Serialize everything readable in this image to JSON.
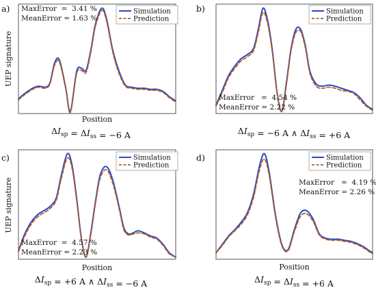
{
  "chart_data": [
    {
      "type": "line",
      "panel_label": "a)",
      "xlabel": "Position",
      "ylabel": "UEP signature",
      "caption": "ΔIsp = ΔIss = −6 A",
      "legend": {
        "placement": "top-right",
        "entries": [
          "Simulation",
          "Prediction"
        ]
      },
      "annotation": {
        "placement": "top-left",
        "lines": [
          "MaxError  =  3.41 %",
          "MeanError = 1.63 %"
        ]
      },
      "grid": false,
      "xlim": [
        0,
        1
      ],
      "ylim": [
        0,
        1
      ],
      "x": [
        0,
        0.04,
        0.09,
        0.13,
        0.17,
        0.2,
        0.23,
        0.26,
        0.3,
        0.33,
        0.37,
        0.4,
        0.43,
        0.46,
        0.49,
        0.53,
        0.56,
        0.6,
        0.64,
        0.68,
        0.72,
        0.76,
        0.8,
        0.84,
        0.88,
        0.92,
        0.96,
        1
      ],
      "series": [
        {
          "name": "Simulation",
          "values": [
            0.14,
            0.19,
            0.24,
            0.26,
            0.25,
            0.29,
            0.48,
            0.51,
            0.25,
            0.02,
            0.4,
            0.43,
            0.41,
            0.6,
            0.85,
            1.0,
            0.9,
            0.6,
            0.4,
            0.27,
            0.25,
            0.24,
            0.24,
            0.23,
            0.23,
            0.21,
            0.16,
            0.12
          ]
        },
        {
          "name": "Prediction",
          "values": [
            0.13,
            0.18,
            0.23,
            0.25,
            0.24,
            0.28,
            0.46,
            0.49,
            0.24,
            0.01,
            0.38,
            0.41,
            0.39,
            0.58,
            0.83,
            0.98,
            0.88,
            0.58,
            0.38,
            0.26,
            0.24,
            0.23,
            0.23,
            0.22,
            0.22,
            0.2,
            0.15,
            0.11
          ]
        }
      ]
    },
    {
      "type": "line",
      "panel_label": "b)",
      "xlabel": "",
      "ylabel": "",
      "caption": "ΔIsp = −6 A ∧ ΔIss = +6 A",
      "legend": {
        "placement": "top-right",
        "entries": [
          "Simulation",
          "Prediction"
        ]
      },
      "annotation": {
        "placement": "bottom-left",
        "lines": [
          "MaxError   =  4.54 %",
          "MeanError = 2.22 %"
        ]
      },
      "grid": false,
      "xlim": [
        0,
        1
      ],
      "ylim": [
        0,
        1
      ],
      "x": [
        0,
        0.04,
        0.08,
        0.12,
        0.16,
        0.2,
        0.24,
        0.27,
        0.3,
        0.33,
        0.36,
        0.39,
        0.42,
        0.45,
        0.48,
        0.51,
        0.54,
        0.57,
        0.6,
        0.64,
        0.68,
        0.72,
        0.76,
        0.8,
        0.84,
        0.88,
        0.92,
        0.96,
        1
      ],
      "series": [
        {
          "name": "Simulation",
          "values": [
            0.08,
            0.22,
            0.36,
            0.45,
            0.52,
            0.56,
            0.62,
            0.8,
            1.0,
            0.88,
            0.6,
            0.2,
            0.02,
            0.3,
            0.62,
            0.8,
            0.8,
            0.65,
            0.4,
            0.28,
            0.26,
            0.27,
            0.26,
            0.24,
            0.22,
            0.2,
            0.15,
            0.08,
            0.04
          ]
        },
        {
          "name": "Prediction",
          "values": [
            0.07,
            0.2,
            0.34,
            0.43,
            0.5,
            0.54,
            0.6,
            0.77,
            0.96,
            0.85,
            0.58,
            0.19,
            0.02,
            0.28,
            0.6,
            0.77,
            0.78,
            0.63,
            0.38,
            0.26,
            0.24,
            0.25,
            0.24,
            0.22,
            0.21,
            0.19,
            0.13,
            0.07,
            0.03
          ]
        }
      ]
    },
    {
      "type": "line",
      "panel_label": "c)",
      "xlabel": "Position",
      "ylabel": "UEP signature",
      "caption": "ΔIsp = +6 A ∧ ΔIss = −6 A",
      "legend": {
        "placement": "top-right",
        "entries": [
          "Simulation",
          "Prediction"
        ]
      },
      "annotation": {
        "placement": "bottom-left",
        "lines": [
          "MaxError  =  4.57 %",
          "MeanError = 2.23 %"
        ]
      },
      "grid": false,
      "xlim": [
        0,
        1
      ],
      "ylim": [
        0,
        1
      ],
      "x": [
        0,
        0.04,
        0.08,
        0.12,
        0.16,
        0.2,
        0.24,
        0.27,
        0.31,
        0.34,
        0.37,
        0.4,
        0.43,
        0.46,
        0.49,
        0.52,
        0.56,
        0.6,
        0.64,
        0.67,
        0.7,
        0.73,
        0.76,
        0.8,
        0.84,
        0.88,
        0.92,
        0.96,
        1
      ],
      "series": [
        {
          "name": "Simulation",
          "values": [
            0.08,
            0.24,
            0.35,
            0.42,
            0.46,
            0.5,
            0.58,
            0.78,
            1.0,
            0.9,
            0.58,
            0.2,
            0.02,
            0.25,
            0.55,
            0.8,
            0.88,
            0.75,
            0.5,
            0.3,
            0.24,
            0.25,
            0.27,
            0.25,
            0.22,
            0.2,
            0.14,
            0.06,
            0.02
          ]
        },
        {
          "name": "Prediction",
          "values": [
            0.07,
            0.22,
            0.33,
            0.4,
            0.44,
            0.48,
            0.56,
            0.75,
            0.96,
            0.87,
            0.56,
            0.19,
            0.02,
            0.23,
            0.53,
            0.77,
            0.85,
            0.72,
            0.48,
            0.28,
            0.23,
            0.24,
            0.25,
            0.24,
            0.21,
            0.19,
            0.13,
            0.05,
            0.02
          ]
        }
      ]
    },
    {
      "type": "line",
      "panel_label": "d)",
      "xlabel": "Position",
      "ylabel": "",
      "caption": "ΔIsp = ΔIss = +6 A",
      "legend": {
        "placement": "top-right",
        "entries": [
          "Simulation",
          "Prediction"
        ]
      },
      "annotation": {
        "placement": "top-right",
        "lines": [
          "MaxError   =  4.19 %",
          "MeanError = 2.26 %"
        ]
      },
      "grid": false,
      "xlim": [
        0,
        1
      ],
      "ylim": [
        0,
        1
      ],
      "x": [
        0,
        0.04,
        0.08,
        0.12,
        0.16,
        0.2,
        0.24,
        0.28,
        0.31,
        0.34,
        0.38,
        0.42,
        0.46,
        0.5,
        0.54,
        0.58,
        0.62,
        0.66,
        0.7,
        0.74,
        0.78,
        0.82,
        0.86,
        0.9,
        0.94,
        0.98,
        1
      ],
      "series": [
        {
          "name": "Simulation",
          "values": [
            0.06,
            0.14,
            0.22,
            0.28,
            0.35,
            0.44,
            0.62,
            0.9,
            1.0,
            0.82,
            0.42,
            0.14,
            0.09,
            0.28,
            0.44,
            0.46,
            0.38,
            0.24,
            0.2,
            0.19,
            0.19,
            0.18,
            0.17,
            0.15,
            0.12,
            0.08,
            0.06
          ]
        },
        {
          "name": "Prediction",
          "values": [
            0.06,
            0.13,
            0.21,
            0.27,
            0.33,
            0.42,
            0.59,
            0.86,
            0.95,
            0.79,
            0.4,
            0.13,
            0.08,
            0.26,
            0.41,
            0.43,
            0.36,
            0.23,
            0.19,
            0.18,
            0.18,
            0.17,
            0.16,
            0.14,
            0.11,
            0.07,
            0.05
          ]
        }
      ]
    }
  ],
  "colors": {
    "simulation": "#2a49c7",
    "prediction": "#b65f1e",
    "axis": "#555555"
  }
}
